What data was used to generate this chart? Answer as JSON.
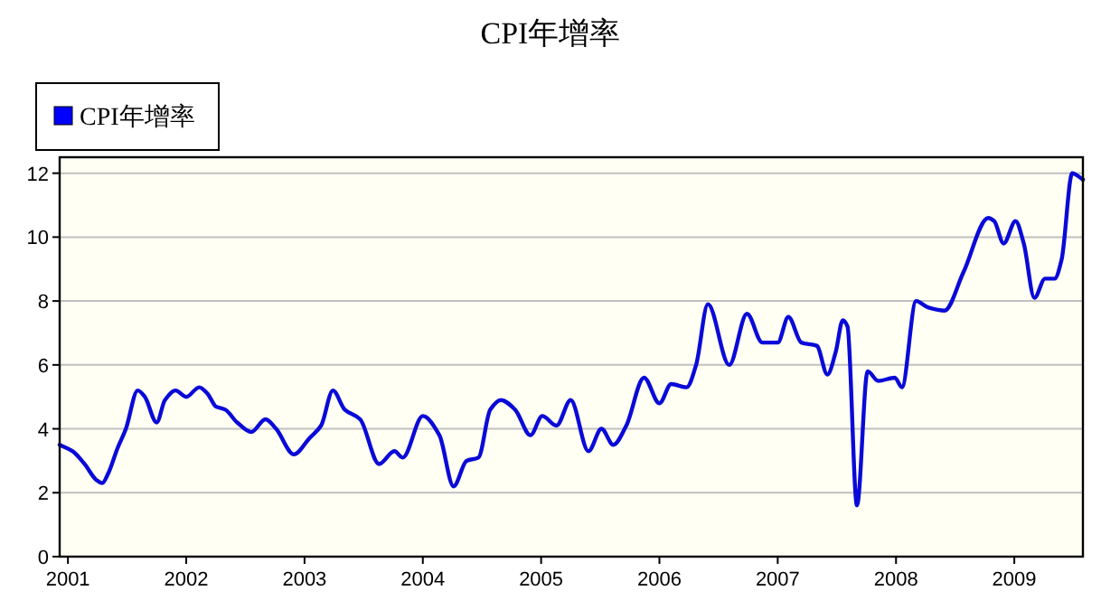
{
  "chart_data": {
    "type": "line",
    "title": "CPI年增率",
    "x": [
      2000.93,
      2001.04,
      2001.14,
      2001.24,
      2001.29,
      2001.34,
      2001.42,
      2001.49,
      2001.59,
      2001.65,
      2001.75,
      2001.82,
      2001.91,
      2002.0,
      2002.11,
      2002.18,
      2002.25,
      2002.33,
      2002.43,
      2002.55,
      2002.67,
      2002.76,
      2002.91,
      2003.04,
      2003.14,
      2003.24,
      2003.34,
      2003.47,
      2003.63,
      2003.76,
      2003.83,
      2004.0,
      2004.14,
      2004.26,
      2004.37,
      2004.47,
      2004.57,
      2004.66,
      2004.78,
      2004.91,
      2005.01,
      2005.13,
      2005.25,
      2005.4,
      2005.51,
      2005.61,
      2005.72,
      2005.87,
      2006.0,
      2006.1,
      2006.23,
      2006.31,
      2006.41,
      2006.59,
      2006.74,
      2006.87,
      2007.0,
      2007.09,
      2007.2,
      2007.33,
      2007.42,
      2007.49,
      2007.55,
      2007.59,
      2007.67,
      2007.76,
      2007.85,
      2007.99,
      2008.05,
      2008.17,
      2008.27,
      2008.41,
      2008.57,
      2008.78,
      2008.83,
      2008.91,
      2009.01,
      2009.08,
      2009.17,
      2009.26,
      2009.34,
      2009.4,
      2009.49,
      2009.58
    ],
    "series": [
      {
        "name": "CPI年增率",
        "color": "#0a0ad8",
        "values": [
          3.5,
          3.3,
          2.9,
          2.4,
          2.3,
          2.6,
          3.4,
          4.0,
          5.2,
          5.0,
          4.2,
          4.9,
          5.2,
          5.0,
          5.3,
          5.1,
          4.7,
          4.6,
          4.2,
          3.9,
          4.3,
          4.0,
          3.2,
          3.7,
          4.1,
          5.2,
          4.6,
          4.3,
          2.9,
          3.3,
          3.1,
          4.4,
          3.8,
          2.2,
          3.0,
          3.1,
          4.6,
          4.9,
          4.6,
          3.8,
          4.4,
          4.1,
          4.9,
          3.3,
          4.0,
          3.5,
          4.1,
          5.6,
          4.8,
          5.4,
          5.3,
          6.0,
          7.9,
          6.0,
          7.6,
          6.7,
          6.7,
          7.5,
          6.7,
          6.6,
          5.7,
          6.4,
          7.4,
          7.2,
          1.6,
          5.8,
          5.5,
          5.6,
          5.3,
          8.0,
          7.8,
          7.7,
          8.9,
          10.6,
          10.5,
          9.8,
          10.5,
          9.8,
          8.1,
          8.7,
          8.7,
          9.3,
          12.0,
          11.8
        ]
      }
    ],
    "xlim": [
      2000.93,
      2009.58
    ],
    "xticks": [
      2001,
      2002,
      2003,
      2004,
      2005,
      2006,
      2007,
      2008,
      2009
    ],
    "ylim": [
      0,
      12.5
    ],
    "yticks": [
      0,
      2,
      4,
      6,
      8,
      10,
      12
    ],
    "grid": "y",
    "legend": "top left"
  }
}
